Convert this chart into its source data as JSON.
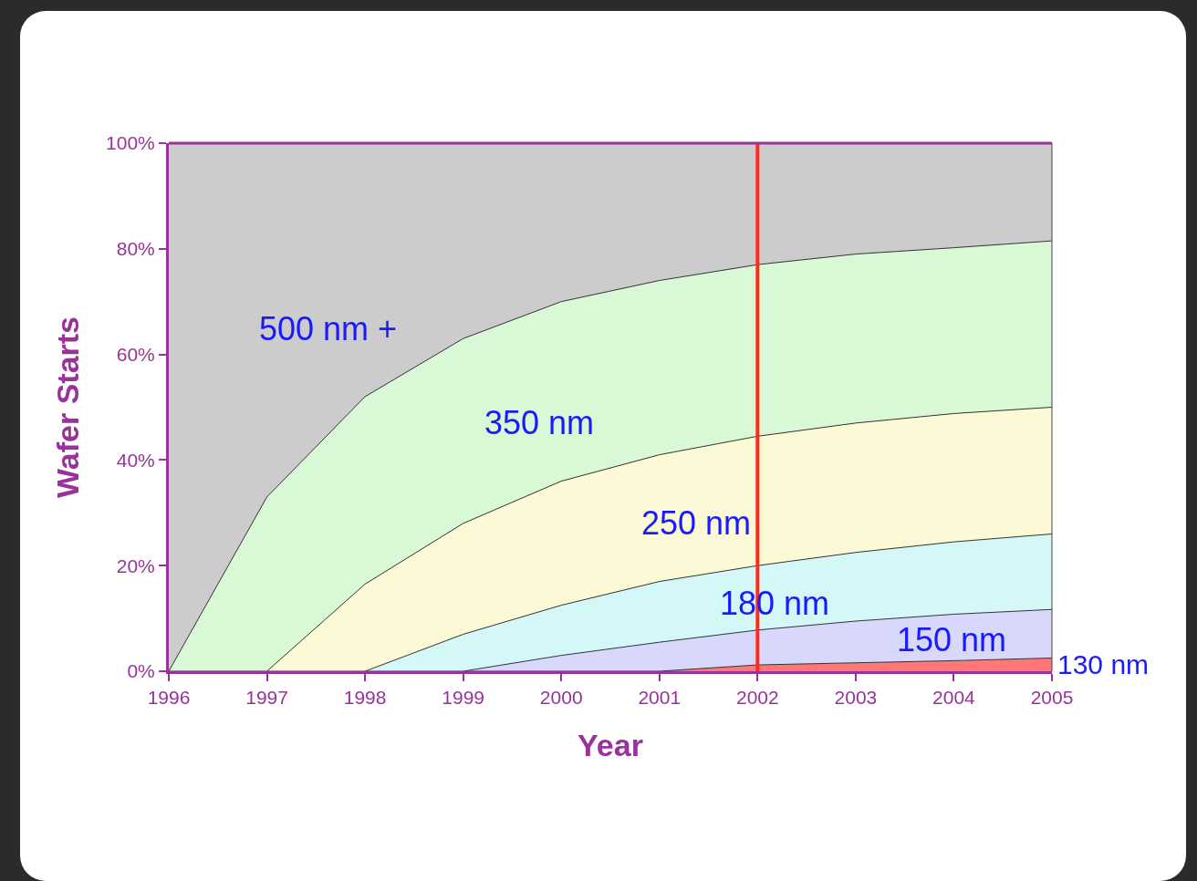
{
  "chart_data": {
    "type": "area",
    "stacked": true,
    "xlabel": "Year",
    "ylabel": "Wafer Starts",
    "x": [
      1996,
      1997,
      1998,
      1999,
      2000,
      2001,
      2002,
      2003,
      2004,
      2005
    ],
    "series": [
      {
        "name": "130 nm",
        "color": "#ff7777",
        "values": [
          0,
          0,
          0,
          0,
          0,
          0,
          1.2,
          1.6,
          2.0,
          2.5
        ]
      },
      {
        "name": "150 nm",
        "color": "#d8d8fc",
        "values": [
          0,
          0,
          0,
          0,
          3,
          5.5,
          6.6,
          7.9,
          8.8,
          9.2
        ]
      },
      {
        "name": "180 nm",
        "color": "#d4f8f8",
        "values": [
          0,
          0,
          0,
          7,
          9.5,
          11.5,
          12.2,
          13,
          13.7,
          14.3
        ]
      },
      {
        "name": "250 nm",
        "color": "#fbf9d6",
        "values": [
          0,
          0,
          16.5,
          21,
          23.5,
          24,
          24.5,
          24.5,
          24.3,
          24
        ]
      },
      {
        "name": "350 nm",
        "color": "#d8f8d6",
        "values": [
          0,
          33,
          35.5,
          35,
          34,
          33,
          32.5,
          32,
          31.4,
          31.5
        ]
      },
      {
        "name": "500 nm +",
        "color": "#cccccc",
        "values": [
          100,
          67,
          48,
          37,
          30,
          26,
          23,
          21,
          19.8,
          18.5
        ]
      }
    ],
    "xlim": [
      1996,
      2005
    ],
    "xticks": [
      1996,
      1997,
      1998,
      1999,
      2000,
      2001,
      2002,
      2003,
      2004,
      2005
    ],
    "ylim": [
      0,
      100
    ],
    "yticks": [
      {
        "value": 0,
        "label": "0%"
      },
      {
        "value": 20,
        "label": "20%"
      },
      {
        "value": 40,
        "label": "40%"
      },
      {
        "value": 60,
        "label": "60%"
      },
      {
        "value": 80,
        "label": "80%"
      },
      {
        "value": 100,
        "label": "100%"
      }
    ],
    "ref_lines": [
      {
        "axis": "x",
        "value": 2002,
        "color": "#ff2a1a"
      }
    ],
    "legend": false
  }
}
